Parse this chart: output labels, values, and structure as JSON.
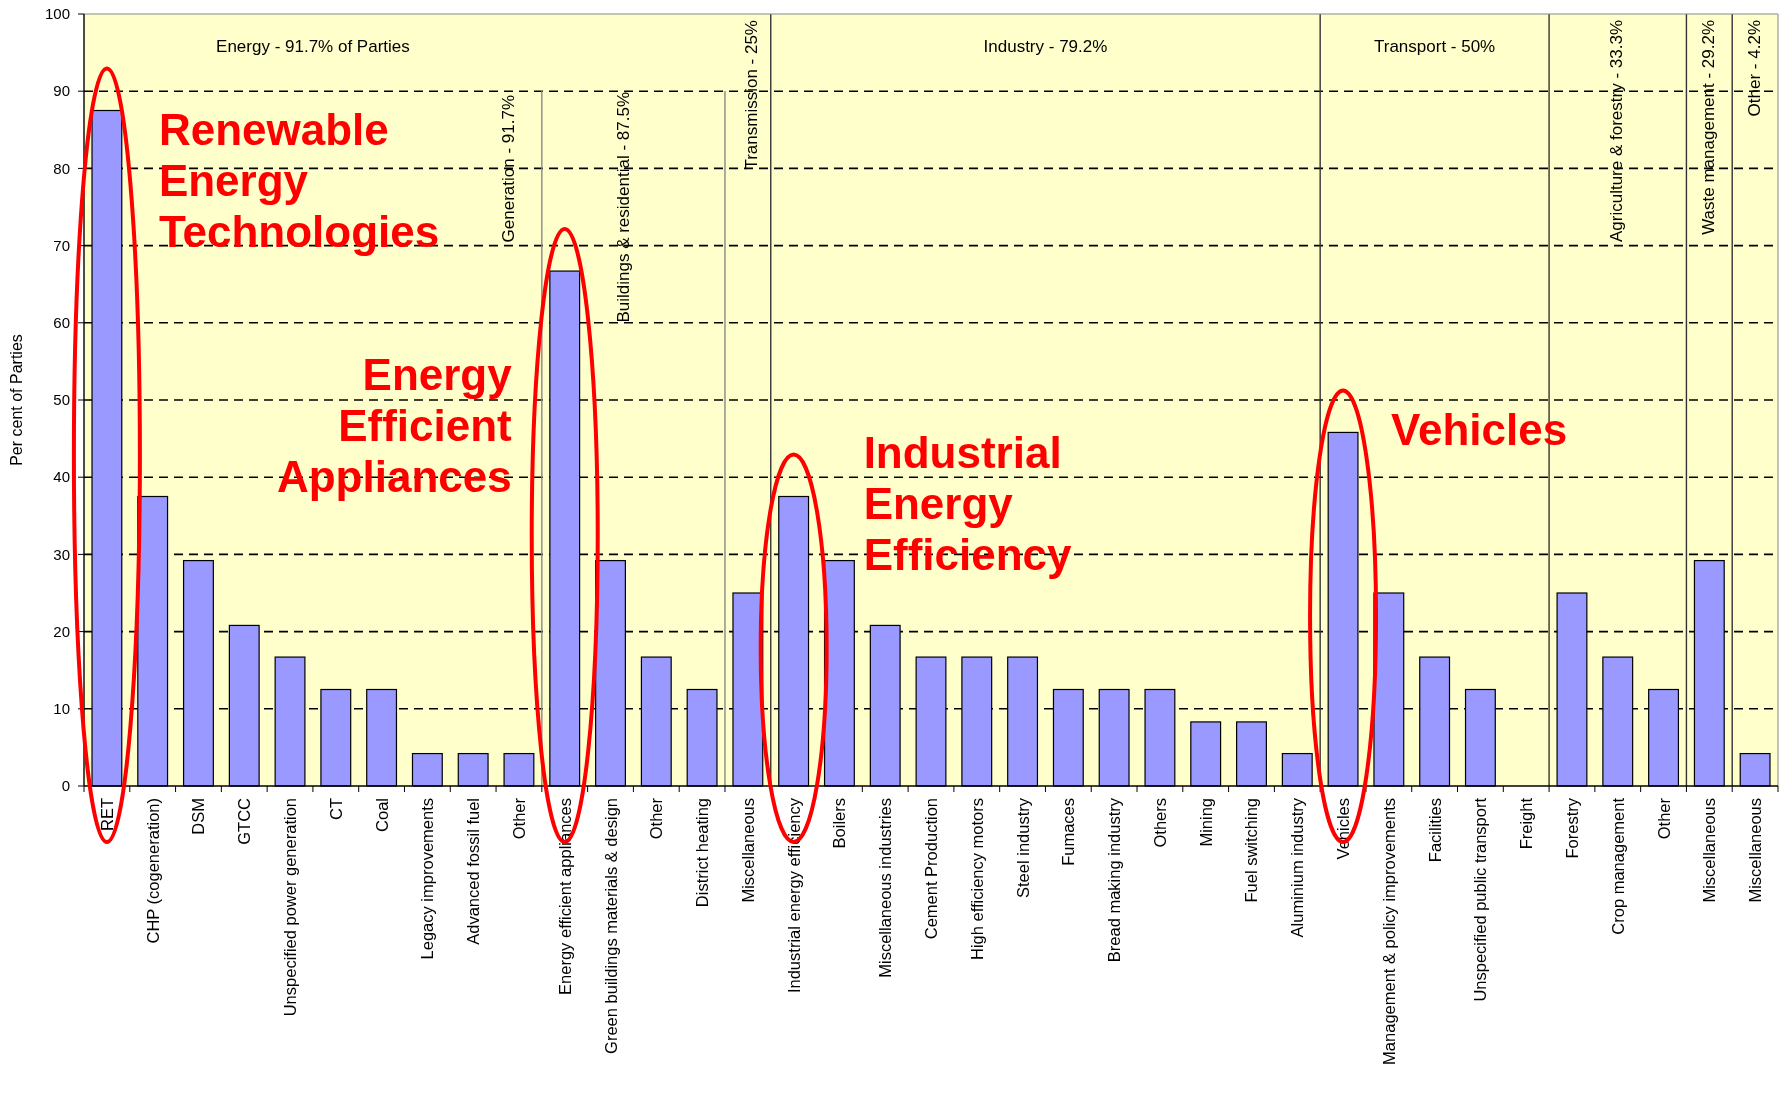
{
  "chart_data": {
    "type": "bar",
    "ylabel": "Per cent of Parties",
    "categories": [
      "RET",
      "CHP (cogeneration)",
      "DSM",
      "GTCC",
      "Unspecified power generation",
      "CT",
      "Coal",
      "Legacy improvements",
      "Advanced fossil fuel",
      "Other",
      "Energy efficient appliances",
      "Green buildings materials & design",
      "Other",
      "District heating",
      "Miscellaneous",
      "Industrial energy efficiency",
      "Boilers",
      "Miscellaneous industries",
      "Cement Production",
      "High efficiency motors",
      "Steel industry",
      "Fumaces",
      "Bread making industry",
      "Others",
      "Mining",
      "Fuel switching",
      "Aluminium industry",
      "Vehicles",
      "Management & policy improvements",
      "Facilities",
      "Unspecified public transport",
      "Freight",
      "Forestry",
      "Crop management",
      "Other",
      "Miscellaneous",
      "Miscellaneous"
    ],
    "values": [
      87.5,
      37.5,
      29.2,
      20.8,
      16.7,
      12.5,
      12.5,
      4.2,
      4.2,
      4.2,
      66.7,
      29.2,
      16.7,
      12.5,
      25,
      37.5,
      29.2,
      20.8,
      16.7,
      16.7,
      16.7,
      12.5,
      12.5,
      12.5,
      8.3,
      8.3,
      4.2,
      45.8,
      25,
      16.7,
      12.5,
      0,
      25,
      16.7,
      12.5,
      29.2,
      4.2
    ],
    "color": "#9999ff",
    "ylim": [
      0,
      100
    ],
    "yticks": [
      0,
      10,
      20,
      30,
      40,
      50,
      60,
      70,
      80,
      90,
      100
    ],
    "grid": "y",
    "annotations": [
      {
        "text": "Renewable Energy Technologies",
        "x": "RET",
        "y": 87.5
      },
      {
        "text": "Energy Efficient Appliances",
        "x": "Energy efficient appliances",
        "y": 66.7
      },
      {
        "text": "Industrial Energy Efficiency",
        "x": "Industrial energy efficiency",
        "y": 37.5
      },
      {
        "text": "Vehicles",
        "x": "Vehicles",
        "y": 45.8
      },
      "Energy  - 91.7% of Parties",
      "Generation - 91.7%",
      "Buildings &  residential - 87.5%",
      "Transmission - 25%",
      "Industry  - 79.2%",
      "Transport  - 50%",
      "Agriculture & forestry - 33.3%",
      "Waste management - 29.2%",
      "Other - 4.2%"
    ]
  }
}
